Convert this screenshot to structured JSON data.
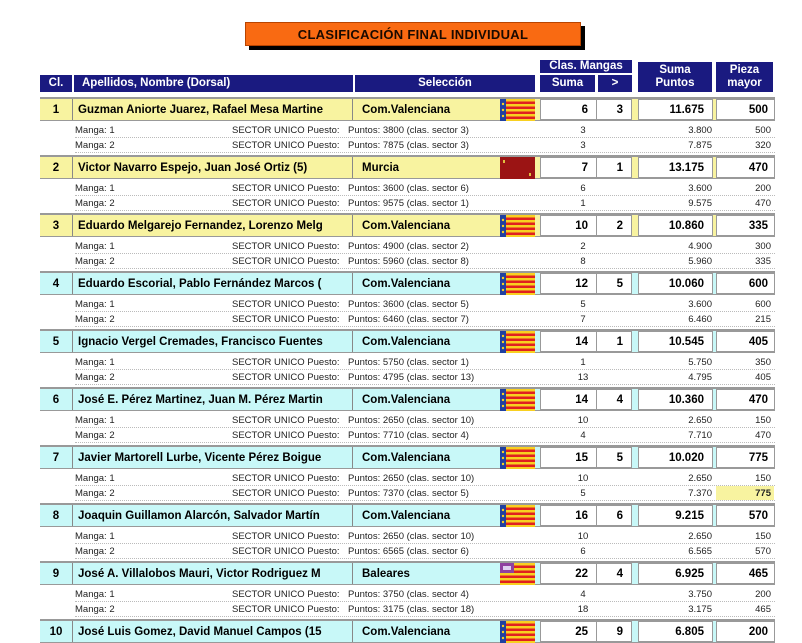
{
  "title": "CLASIFICACIÓN FINAL INDIVIDUAL",
  "headers": {
    "cl": "Cl.",
    "name": "Apellidos, Nombre (Dorsal)",
    "selection": "Selección",
    "clas_mangas": "Clas. Mangas",
    "suma": "Suma",
    "gt": ">",
    "suma_puntos": "Suma Puntos",
    "pieza_mayor": "Pieza mayor"
  },
  "colors": {
    "header": "#1a1a80",
    "title": "#f96a12",
    "row_yellow": "#f8f3a0",
    "row_cyan": "#c8f8f8",
    "highlight": "#f8f3a0"
  },
  "rows": [
    {
      "cl": "1",
      "name": "Guzman Aniorte Juarez, Rafael Mesa Martine",
      "selection": "Com.Valenciana",
      "flag": "valencia-flag",
      "suma": "6",
      "gt": "3",
      "puntos": "11.675",
      "pieza": "500",
      "color": "yellow",
      "mangas": [
        {
          "label": "Manga: 1",
          "sector": "SECTOR UNICO  Puesto:",
          "detail": "Puntos: 3800 (clas. sector 3)",
          "puesto": "3",
          "puntos": "3.800",
          "pieza": "500"
        },
        {
          "label": "Manga: 2",
          "sector": "SECTOR UNICO  Puesto:",
          "detail": "Puntos: 7875 (clas. sector 3)",
          "puesto": "3",
          "puntos": "7.875",
          "pieza": "320"
        }
      ]
    },
    {
      "cl": "2",
      "name": "Victor Navarro Espejo, Juan José Ortiz  (5)",
      "selection": "Murcia",
      "flag": "murcia-flag",
      "suma": "7",
      "gt": "1",
      "puntos": "13.175",
      "pieza": "470",
      "color": "yellow",
      "mangas": [
        {
          "label": "Manga: 1",
          "sector": "SECTOR UNICO  Puesto:",
          "detail": "Puntos: 3600 (clas. sector 6)",
          "puesto": "6",
          "puntos": "3.600",
          "pieza": "200"
        },
        {
          "label": "Manga: 2",
          "sector": "SECTOR UNICO  Puesto:",
          "detail": "Puntos: 9575 (clas. sector 1)",
          "puesto": "1",
          "puntos": "9.575",
          "pieza": "470"
        }
      ]
    },
    {
      "cl": "3",
      "name": "Eduardo Melgarejo Fernandez, Lorenzo Melg",
      "selection": "Com.Valenciana",
      "flag": "valencia-flag",
      "suma": "10",
      "gt": "2",
      "puntos": "10.860",
      "pieza": "335",
      "color": "yellow",
      "mangas": [
        {
          "label": "Manga: 1",
          "sector": "SECTOR UNICO  Puesto:",
          "detail": "Puntos: 4900 (clas. sector 2)",
          "puesto": "2",
          "puntos": "4.900",
          "pieza": "300"
        },
        {
          "label": "Manga: 2",
          "sector": "SECTOR UNICO  Puesto:",
          "detail": "Puntos: 5960 (clas. sector 8)",
          "puesto": "8",
          "puntos": "5.960",
          "pieza": "335"
        }
      ]
    },
    {
      "cl": "4",
      "name": "Eduardo Escorial, Pablo Fernández Marcos  (",
      "selection": "Com.Valenciana",
      "flag": "valencia-flag",
      "suma": "12",
      "gt": "5",
      "puntos": "10.060",
      "pieza": "600",
      "color": "cyan",
      "mangas": [
        {
          "label": "Manga: 1",
          "sector": "SECTOR UNICO  Puesto:",
          "detail": "Puntos: 3600 (clas. sector 5)",
          "puesto": "5",
          "puntos": "3.600",
          "pieza": "600"
        },
        {
          "label": "Manga: 2",
          "sector": "SECTOR UNICO  Puesto:",
          "detail": "Puntos: 6460 (clas. sector 7)",
          "puesto": "7",
          "puntos": "6.460",
          "pieza": "215"
        }
      ]
    },
    {
      "cl": "5",
      "name": "Ignacio Vergel Cremades, Francisco Fuentes",
      "selection": "Com.Valenciana",
      "flag": "valencia-flag",
      "suma": "14",
      "gt": "1",
      "puntos": "10.545",
      "pieza": "405",
      "color": "cyan",
      "mangas": [
        {
          "label": "Manga: 1",
          "sector": "SECTOR UNICO  Puesto:",
          "detail": "Puntos: 5750 (clas. sector 1)",
          "puesto": "1",
          "puntos": "5.750",
          "pieza": "350"
        },
        {
          "label": "Manga: 2",
          "sector": "SECTOR UNICO  Puesto:",
          "detail": "Puntos: 4795 (clas. sector 13)",
          "puesto": "13",
          "puntos": "4.795",
          "pieza": "405"
        }
      ]
    },
    {
      "cl": "6",
      "name": "José E. Pérez Martinez, Juan M. Pérez Martin",
      "selection": "Com.Valenciana",
      "flag": "valencia-flag",
      "suma": "14",
      "gt": "4",
      "puntos": "10.360",
      "pieza": "470",
      "color": "cyan",
      "mangas": [
        {
          "label": "Manga: 1",
          "sector": "SECTOR UNICO  Puesto:",
          "detail": "Puntos: 2650 (clas. sector 10)",
          "puesto": "10",
          "puntos": "2.650",
          "pieza": "150"
        },
        {
          "label": "Manga: 2",
          "sector": "SECTOR UNICO  Puesto:",
          "detail": "Puntos: 7710 (clas. sector 4)",
          "puesto": "4",
          "puntos": "7.710",
          "pieza": "470"
        }
      ]
    },
    {
      "cl": "7",
      "name": "Javier Martorell Lurbe, Vicente Pérez Boigue",
      "selection": "Com.Valenciana",
      "flag": "valencia-flag",
      "suma": "15",
      "gt": "5",
      "puntos": "10.020",
      "pieza": "775",
      "color": "cyan",
      "mangas": [
        {
          "label": "Manga: 1",
          "sector": "SECTOR UNICO  Puesto:",
          "detail": "Puntos: 2650 (clas. sector 10)",
          "puesto": "10",
          "puntos": "2.650",
          "pieza": "150"
        },
        {
          "label": "Manga: 2",
          "sector": "SECTOR UNICO  Puesto:",
          "detail": "Puntos: 7370 (clas. sector 5)",
          "puesto": "5",
          "puntos": "7.370",
          "pieza": "775",
          "highlight": true
        }
      ]
    },
    {
      "cl": "8",
      "name": "Joaquin Guillamon Alarcón, Salvador Martín",
      "selection": "Com.Valenciana",
      "flag": "valencia-flag",
      "suma": "16",
      "gt": "6",
      "puntos": "9.215",
      "pieza": "570",
      "color": "cyan",
      "mangas": [
        {
          "label": "Manga: 1",
          "sector": "SECTOR UNICO  Puesto:",
          "detail": "Puntos: 2650 (clas. sector 10)",
          "puesto": "10",
          "puntos": "2.650",
          "pieza": "150"
        },
        {
          "label": "Manga: 2",
          "sector": "SECTOR UNICO  Puesto:",
          "detail": "Puntos: 6565 (clas. sector 6)",
          "puesto": "6",
          "puntos": "6.565",
          "pieza": "570"
        }
      ]
    },
    {
      "cl": "9",
      "name": "José A. Villalobos Mauri, Victor Rodriguez M",
      "selection": "Baleares",
      "flag": "baleares-flag",
      "suma": "22",
      "gt": "4",
      "puntos": "6.925",
      "pieza": "465",
      "color": "cyan",
      "mangas": [
        {
          "label": "Manga: 1",
          "sector": "SECTOR UNICO  Puesto:",
          "detail": "Puntos: 3750 (clas. sector 4)",
          "puesto": "4",
          "puntos": "3.750",
          "pieza": "200"
        },
        {
          "label": "Manga: 2",
          "sector": "SECTOR UNICO  Puesto:",
          "detail": "Puntos: 3175 (clas. sector 18)",
          "puesto": "18",
          "puntos": "3.175",
          "pieza": "465"
        }
      ]
    },
    {
      "cl": "10",
      "name": "José Luis Gomez, David Manuel Campos  (15",
      "selection": "Com.Valenciana",
      "flag": "valencia-flag",
      "suma": "25",
      "gt": "9",
      "puntos": "6.805",
      "pieza": "200",
      "color": "cyan",
      "mangas": []
    }
  ]
}
